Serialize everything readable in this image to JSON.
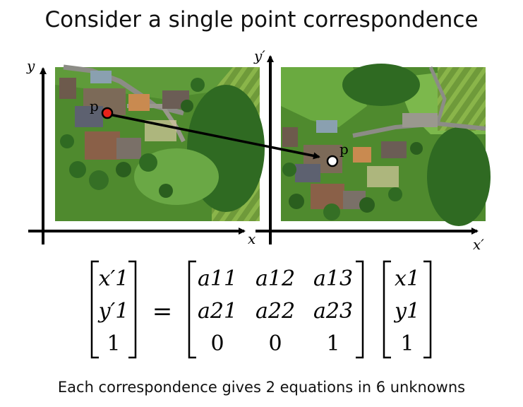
{
  "title": "Consider a single point correspondence",
  "caption": "Each correspondence gives 2 equations in 6 unknowns",
  "left_view": {
    "x_axis_label": "x",
    "y_axis_label": "y",
    "point_label": "p",
    "point_color": "#e8231a"
  },
  "right_view": {
    "x_axis_label": "x′",
    "y_axis_label": "y′",
    "point_label": "p",
    "point_color": "#ffffff"
  },
  "equation": {
    "lhs": [
      "x′1",
      "y′1",
      "1"
    ],
    "equals": "=",
    "matrix": [
      [
        "a11",
        "a12",
        "a13"
      ],
      [
        "a21",
        "a22",
        "a23"
      ],
      [
        "0",
        "0",
        "1"
      ]
    ],
    "rhs": [
      "x1",
      "y1",
      "1"
    ]
  }
}
